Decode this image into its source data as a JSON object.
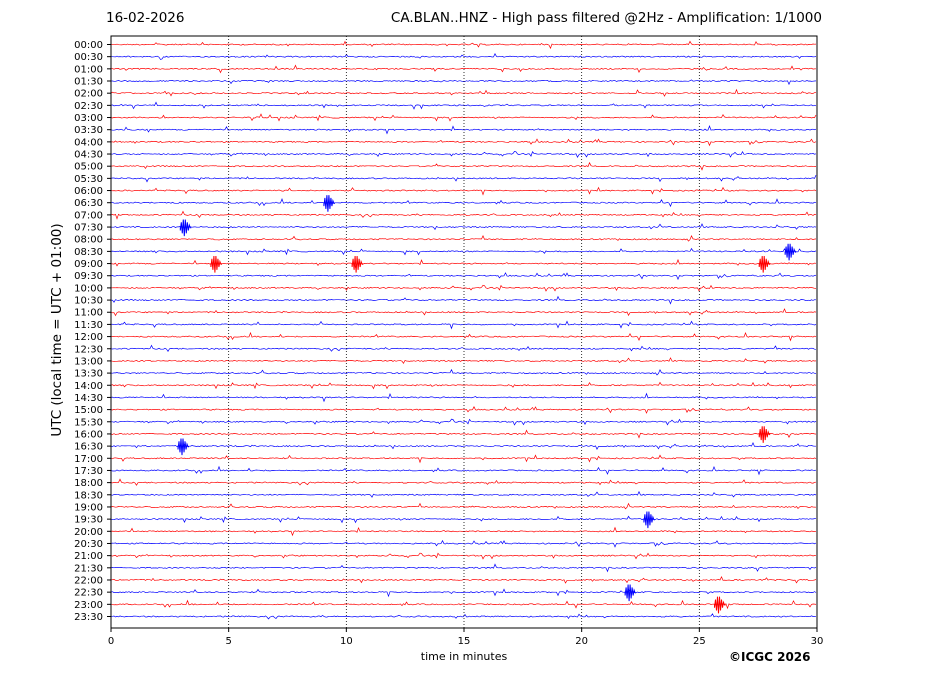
{
  "header": {
    "date": "16-02-2026",
    "title": "CA.BLAN..HNZ - High pass filtered @2Hz - Amplification: 1/1000"
  },
  "footer": {
    "copyright": "©ICGC 2026"
  },
  "colors": {
    "trace_a": "#ff0000",
    "trace_b": "#0000ff",
    "grid": "#000000",
    "background": "#ffffff"
  },
  "chart_data": {
    "type": "line",
    "title": "CA.BLAN..HNZ - High pass filtered @2Hz - Amplification: 1/1000",
    "xlabel": "time in minutes",
    "ylabel": "UTC (local time = UTC + 01:00)",
    "xlim": [
      0,
      30
    ],
    "x_ticks": [
      "0",
      "5",
      "10",
      "15",
      "20",
      "25",
      "30"
    ],
    "vertical_gridlines_minutes": [
      5,
      10,
      15,
      20,
      25
    ],
    "trace_colors_alternating": [
      "red",
      "blue"
    ],
    "y_tick_labels": [
      "00:00",
      "00:30",
      "01:00",
      "01:30",
      "02:00",
      "02:30",
      "03:00",
      "03:30",
      "04:00",
      "04:30",
      "05:00",
      "05:30",
      "06:00",
      "06:30",
      "07:00",
      "07:30",
      "08:00",
      "08:30",
      "09:00",
      "09:30",
      "10:00",
      "10:30",
      "11:00",
      "11:30",
      "12:00",
      "12:30",
      "13:00",
      "13:30",
      "14:00",
      "14:30",
      "15:00",
      "15:30",
      "16:00",
      "16:30",
      "17:00",
      "17:30",
      "18:00",
      "18:30",
      "19:00",
      "19:30",
      "20:00",
      "20:30",
      "21:00",
      "21:30",
      "22:00",
      "22:30",
      "23:00",
      "23:30"
    ],
    "notable_events": [
      {
        "row": "06:30",
        "minute": 9.3
      },
      {
        "row": "07:30",
        "minute": 3.2
      },
      {
        "row": "08:30",
        "minute": 28.9
      },
      {
        "row": "09:00",
        "minute": 4.5
      },
      {
        "row": "09:00",
        "minute": 10.5
      },
      {
        "row": "09:00",
        "minute": 27.8
      },
      {
        "row": "16:00",
        "minute": 27.8
      },
      {
        "row": "16:30",
        "minute": 3.1
      },
      {
        "row": "19:30",
        "minute": 22.9
      },
      {
        "row": "22:30",
        "minute": 22.1
      },
      {
        "row": "23:00",
        "minute": 25.9
      }
    ]
  }
}
